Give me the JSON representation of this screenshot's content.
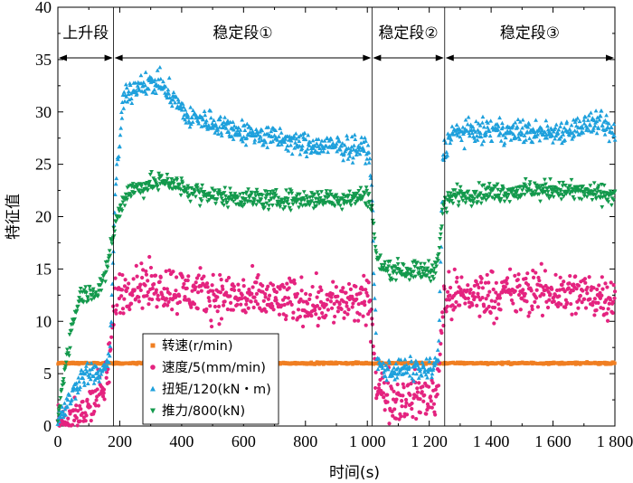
{
  "chart_data": {
    "type": "scatter",
    "xlabel": "时间(s)",
    "ylabel": "特征值",
    "xlim": [
      0,
      1800
    ],
    "ylim": [
      0,
      40
    ],
    "x_ticks": [
      0,
      200,
      400,
      600,
      800,
      1000,
      1200,
      1400,
      1600,
      1800
    ],
    "x_tick_labels": [
      "0",
      "200",
      "400",
      "600",
      "800",
      "1 000",
      "1 200",
      "1 400",
      "1 600",
      "1 800"
    ],
    "y_ticks": [
      0,
      5,
      10,
      15,
      20,
      25,
      30,
      35,
      40
    ],
    "y_tick_labels": [
      "0",
      "5",
      "10",
      "15",
      "20",
      "25",
      "30",
      "35",
      "40"
    ],
    "phase_boundaries": [
      0,
      180,
      1015,
      1250,
      1800
    ],
    "phases": [
      {
        "label": "上升段",
        "start": 0,
        "end": 180
      },
      {
        "label": "稳定段①",
        "start": 180,
        "end": 1015
      },
      {
        "label": "稳定段②",
        "start": 1015,
        "end": 1250
      },
      {
        "label": "稳定段③",
        "start": 1250,
        "end": 1800
      }
    ],
    "legend_position": "bottom-left",
    "series": [
      {
        "name": "转速(r/min)",
        "marker": "square",
        "color": "#f07f22",
        "noise": 0.05,
        "profile": [
          [
            0,
            6.0
          ],
          [
            1800,
            6.0
          ]
        ]
      },
      {
        "name": "速度/5(mm/min)",
        "marker": "circle",
        "color": "#e4237f",
        "noise": 1.1,
        "profile": [
          [
            0,
            0.3
          ],
          [
            60,
            0.5
          ],
          [
            85,
            1.5
          ],
          [
            110,
            2.5
          ],
          [
            150,
            3.5
          ],
          [
            165,
            5.5
          ],
          [
            185,
            12.5
          ],
          [
            250,
            13.5
          ],
          [
            350,
            13.2
          ],
          [
            500,
            12.5
          ],
          [
            700,
            12.0
          ],
          [
            900,
            11.8
          ],
          [
            1000,
            11.8
          ],
          [
            1012,
            11.0
          ],
          [
            1030,
            3.5
          ],
          [
            1100,
            2.6
          ],
          [
            1200,
            2.8
          ],
          [
            1225,
            3.0
          ],
          [
            1245,
            12.0
          ],
          [
            1300,
            12.5
          ],
          [
            1450,
            12.7
          ],
          [
            1600,
            12.8
          ],
          [
            1750,
            12.5
          ],
          [
            1800,
            12.5
          ]
        ]
      },
      {
        "name": "扭矩/120(kN・m)",
        "marker": "triangle-up",
        "color": "#1ea0dc",
        "noise": 0.55,
        "profile": [
          [
            0,
            0.5
          ],
          [
            30,
            2.0
          ],
          [
            70,
            4.5
          ],
          [
            90,
            5.0
          ],
          [
            150,
            5.0
          ],
          [
            170,
            7.5
          ],
          [
            185,
            22.0
          ],
          [
            210,
            31.0
          ],
          [
            250,
            32.5
          ],
          [
            330,
            32.8
          ],
          [
            380,
            31.0
          ],
          [
            420,
            29.5
          ],
          [
            500,
            29.0
          ],
          [
            600,
            28.0
          ],
          [
            700,
            27.5
          ],
          [
            800,
            26.8
          ],
          [
            1000,
            26.5
          ],
          [
            1012,
            24.5
          ],
          [
            1030,
            6.0
          ],
          [
            1060,
            5.4
          ],
          [
            1210,
            5.4
          ],
          [
            1230,
            6.5
          ],
          [
            1245,
            26.0
          ],
          [
            1270,
            28.0
          ],
          [
            1400,
            28.2
          ],
          [
            1600,
            28.0
          ],
          [
            1750,
            29.0
          ],
          [
            1800,
            27.8
          ]
        ]
      },
      {
        "name": "推力/800(kN)",
        "marker": "triangle-down",
        "color": "#13994c",
        "noise": 0.45,
        "profile": [
          [
            0,
            0.5
          ],
          [
            20,
            5.0
          ],
          [
            45,
            9.5
          ],
          [
            70,
            12.5
          ],
          [
            130,
            13.0
          ],
          [
            150,
            14.0
          ],
          [
            180,
            18.5
          ],
          [
            195,
            20.5
          ],
          [
            230,
            22.5
          ],
          [
            350,
            23.5
          ],
          [
            420,
            22.5
          ],
          [
            500,
            22.0
          ],
          [
            700,
            21.6
          ],
          [
            900,
            21.7
          ],
          [
            1000,
            22.0
          ],
          [
            1012,
            21.5
          ],
          [
            1030,
            16.0
          ],
          [
            1060,
            15.0
          ],
          [
            1210,
            14.8
          ],
          [
            1230,
            16.0
          ],
          [
            1245,
            21.0
          ],
          [
            1270,
            22.0
          ],
          [
            1400,
            22.3
          ],
          [
            1600,
            22.6
          ],
          [
            1750,
            22.2
          ],
          [
            1800,
            22.0
          ]
        ]
      }
    ]
  }
}
